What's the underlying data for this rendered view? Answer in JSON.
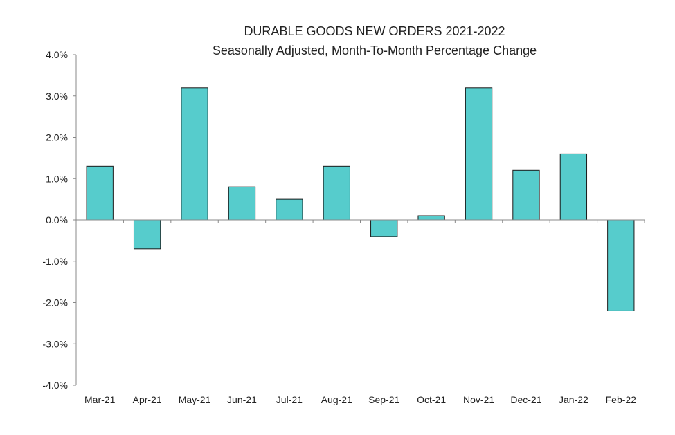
{
  "chart_data": {
    "type": "bar",
    "title": "DURABLE GOODS NEW ORDERS 2021-2022",
    "subtitle": "Seasonally Adjusted,  Month-To-Month Percentage Change",
    "xlabel": "",
    "ylabel": "",
    "categories": [
      "Mar-21",
      "Apr-21",
      "May-21",
      "Jun-21",
      "Jul-21",
      "Aug-21",
      "Sep-21",
      "Oct-21",
      "Nov-21",
      "Dec-21",
      "Jan-22",
      "Feb-22"
    ],
    "values": [
      1.3,
      -0.7,
      3.2,
      0.8,
      0.5,
      1.3,
      -0.4,
      0.1,
      3.2,
      1.2,
      1.6,
      -2.2
    ],
    "ylim": [
      -4,
      4
    ],
    "yticks": [
      4,
      3,
      2,
      1,
      0,
      -1,
      -2,
      -3,
      -4
    ],
    "ytick_labels": [
      "4.0%",
      "3.0%",
      "2.0%",
      "1.0%",
      "0.0%",
      "-1.0%",
      "-2.0%",
      "-3.0%",
      "-4.0%"
    ],
    "grid": false,
    "legend": "none",
    "bar_color": "#56CCCC",
    "bar_edge_color": "#1a1a1a",
    "axis_color": "#888888"
  }
}
